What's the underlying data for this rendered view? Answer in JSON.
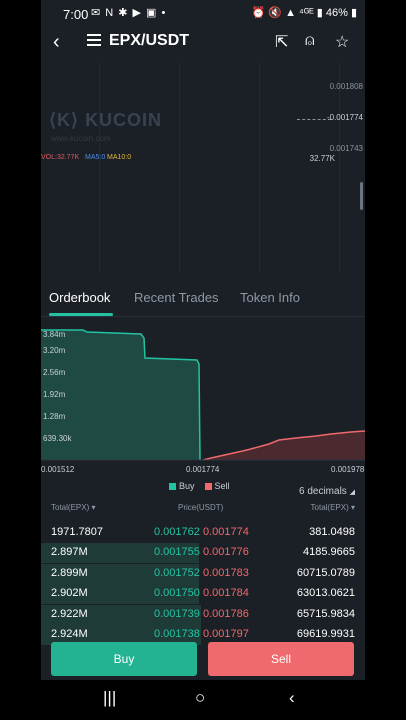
{
  "status": {
    "time": "7:00",
    "apps": "✉ N ✱ ▶ ▣ •",
    "right": "⏰ 🔇 ▲ ⁴ᴳᴱ ▮ 46% ▮"
  },
  "header": {
    "pair": "EPX/USDT"
  },
  "chart": {
    "watermark": "KUCOIN",
    "watermark_sub": "www.kucoin.com",
    "vol_label": "VOL:32.77K",
    "ma5_label": "MA5:0",
    "ma10_label": "MA10:0",
    "price_levels": [
      "0.001808",
      "-0.001774",
      "0.001743"
    ],
    "volume_label": "32.77K",
    "colors": {
      "vol": "#e05a5a",
      "ma5": "#4d8ee8",
      "ma10": "#e0b63a"
    }
  },
  "tabs": [
    "Orderbook",
    "Recent Trades",
    "Token Info"
  ],
  "depth_chart": {
    "y_labels": [
      "3.84m",
      "3.20m",
      "2.56m",
      "1.92m",
      "1.28m",
      "639.30k"
    ],
    "x_labels": [
      "0.001512",
      "0.001774",
      "0.001978"
    ],
    "legend": [
      "Buy",
      "Sell"
    ],
    "colors": {
      "buy": "#23c3a2",
      "sell": "#f06a6d"
    }
  },
  "orderbook": {
    "decimals": "6 decimals",
    "headers": {
      "total_left": "Total(EPX)",
      "price": "Price(USDT)",
      "total_right": "Total(EPX)"
    },
    "rows": [
      {
        "total_bid": "1971.7807",
        "bid": "0.001762",
        "ask": "0.001774",
        "total_ask": "381.0498",
        "bid_depth": 0.0
      },
      {
        "total_bid": "2.897M",
        "bid": "0.001755",
        "ask": "0.001776",
        "total_ask": "4185.9665",
        "bid_depth": 0.99
      },
      {
        "total_bid": "2.899M",
        "bid": "0.001752",
        "ask": "0.001783",
        "total_ask": "60715.0789",
        "bid_depth": 0.99
      },
      {
        "total_bid": "2.902M",
        "bid": "0.001750",
        "ask": "0.001784",
        "total_ask": "63013.0621",
        "bid_depth": 0.99
      },
      {
        "total_bid": "2.922M",
        "bid": "0.001739",
        "ask": "0.001786",
        "total_ask": "65715.9834",
        "bid_depth": 1.0
      },
      {
        "total_bid": "2.924M",
        "bid": "0.001738",
        "ask": "0.001797",
        "total_ask": "69619.9931",
        "bid_depth": 1.0
      }
    ]
  },
  "buttons": {
    "buy": "Buy",
    "sell": "Sell"
  },
  "navbar": {
    "recent": "|||",
    "home": "○",
    "back": "‹"
  }
}
